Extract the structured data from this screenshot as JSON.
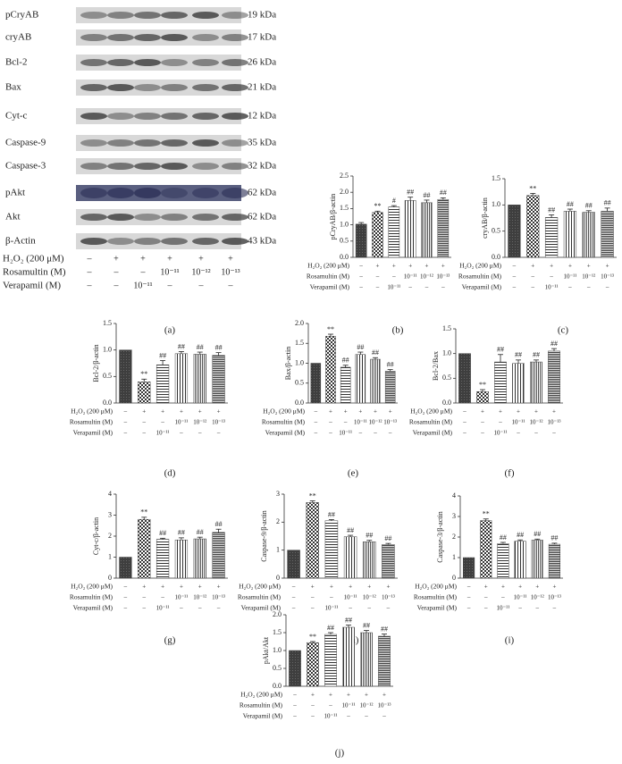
{
  "blot": {
    "label": "(a)",
    "rows": [
      {
        "protein": "pCryAB",
        "size": "19 kDa"
      },
      {
        "protein": "cryAB",
        "size": "17 kDa"
      },
      {
        "protein": "Bcl-2",
        "size": "26 kDa"
      },
      {
        "protein": "Bax",
        "size": "21 kDa"
      },
      {
        "protein": "Cyt-c",
        "size": "12 kDa"
      },
      {
        "protein": "Caspase-9",
        "size": "35 kDa"
      },
      {
        "protein": "Caspase-3",
        "size": "32 kDa"
      },
      {
        "protein": "pAkt",
        "size": "62 kDa"
      },
      {
        "protein": "Akt",
        "size": "62 kDa"
      },
      {
        "protein": "β-Actin",
        "size": "43 kDa"
      }
    ],
    "conditions": [
      {
        "name": "H₂O₂ (200 μM)",
        "values": [
          "–",
          "+",
          "+",
          "+",
          "+",
          "+"
        ]
      },
      {
        "name": "Rosamultin (M)",
        "values": [
          "–",
          "–",
          "–",
          "10⁻¹¹",
          "10⁻¹²",
          "10⁻¹³"
        ]
      },
      {
        "name": "Verapamil (M)",
        "values": [
          "–",
          "–",
          "10⁻¹¹",
          "–",
          "–",
          "–"
        ]
      }
    ]
  },
  "chart_data": [
    {
      "type": "bar",
      "label": "(b)",
      "ylabel": "pCryAB/β-actin",
      "ylim": [
        0,
        2.5
      ],
      "yticks": [
        {
          "value": 0,
          "label": "0.0"
        },
        0.5,
        {
          "value": 1,
          "label": "1.0"
        },
        1.5,
        {
          "value": 2,
          "label": "2.0"
        },
        2.5
      ],
      "values": [
        1.02,
        1.38,
        1.55,
        1.75,
        1.68,
        1.78
      ],
      "errors": [
        0.05,
        0.04,
        0.04,
        0.1,
        0.08,
        0.05
      ],
      "marks": [
        null,
        "**",
        "#",
        "##",
        "##",
        "##"
      ],
      "conditions": [
        {
          "name": "H₂O₂ (200 μM)",
          "values": [
            "–",
            "+",
            "+",
            "+",
            "+",
            "+"
          ]
        },
        {
          "name": "Rosamultin (M)",
          "values": [
            "–",
            "–",
            "–",
            "10⁻¹¹",
            "10⁻¹²",
            "10⁻¹³"
          ]
        },
        {
          "name": "Verapamil (M)",
          "values": [
            "–",
            "–",
            "10⁻¹¹",
            "–",
            "–",
            "–"
          ]
        }
      ]
    },
    {
      "type": "bar",
      "label": "(c)",
      "ylabel": "cryAB/β-actin",
      "ylim": [
        0,
        1.5
      ],
      "yticks": [
        {
          "value": 0,
          "label": "0.0"
        },
        0.5,
        {
          "value": 1,
          "label": "1.0"
        },
        1.5
      ],
      "values": [
        1.0,
        1.18,
        0.76,
        0.88,
        0.86,
        0.88
      ],
      "errors": [
        0,
        0.04,
        0.05,
        0.04,
        0.03,
        0.06
      ],
      "marks": [
        null,
        "**",
        "##",
        "##",
        "##",
        "##"
      ],
      "conditions": [
        {
          "name": "H₂O₂ (200 μM)",
          "values": [
            "–",
            "+",
            "+",
            "+",
            "+",
            "+"
          ]
        },
        {
          "name": "Rosamultin (M)",
          "values": [
            "–",
            "–",
            "–",
            "10⁻¹¹",
            "10⁻¹²",
            "10⁻¹³"
          ]
        },
        {
          "name": "Verapamil (M)",
          "values": [
            "–",
            "–",
            "10⁻¹¹",
            "–",
            "–",
            "–"
          ]
        }
      ]
    },
    {
      "type": "bar",
      "label": "(d)",
      "ylabel": "Bcl-2/β-actin",
      "ylim": [
        0,
        1.5
      ],
      "yticks": [
        {
          "value": 0,
          "label": "0.0"
        },
        0.5,
        {
          "value": 1,
          "label": "1.0"
        },
        1.5
      ],
      "values": [
        1.0,
        0.4,
        0.72,
        0.93,
        0.92,
        0.9
      ],
      "errors": [
        0,
        0.05,
        0.08,
        0.04,
        0.04,
        0.05
      ],
      "marks": [
        null,
        "**",
        "##",
        "##",
        "##",
        "##"
      ],
      "conditions": [
        {
          "name": "H₂O₂ (200 μM)",
          "values": [
            "–",
            "+",
            "+",
            "+",
            "+",
            "+"
          ]
        },
        {
          "name": "Rosamultin (M)",
          "values": [
            "–",
            "–",
            "–",
            "10⁻¹¹",
            "10⁻¹²",
            "10⁻¹³"
          ]
        },
        {
          "name": "Verapamil (M)",
          "values": [
            "–",
            "–",
            "10⁻¹¹",
            "–",
            "–",
            "–"
          ]
        }
      ]
    },
    {
      "type": "bar",
      "label": "(e)",
      "ylabel": "Bax/β-actin",
      "ylim": [
        0,
        2
      ],
      "yticks": [
        {
          "value": 0,
          "label": "0.0"
        },
        0.5,
        {
          "value": 1,
          "label": "1.0"
        },
        1.5,
        {
          "value": 2,
          "label": "2.0"
        }
      ],
      "values": [
        1.0,
        1.68,
        0.9,
        1.22,
        1.1,
        0.8
      ],
      "errors": [
        0,
        0.05,
        0.05,
        0.06,
        0.04,
        0.04
      ],
      "marks": [
        null,
        "**",
        "##",
        "##",
        "##",
        "##"
      ],
      "conditions": [
        {
          "name": "H₂O₂ (200 μM)",
          "values": [
            "–",
            "+",
            "+",
            "+",
            "+",
            "+"
          ]
        },
        {
          "name": "Rosamultin (M)",
          "values": [
            "–",
            "–",
            "–",
            "10⁻¹¹",
            "10⁻¹²",
            "10⁻¹³"
          ]
        },
        {
          "name": "Verapamil (M)",
          "values": [
            "–",
            "–",
            "10⁻¹¹",
            "–",
            "–",
            "–"
          ]
        }
      ]
    },
    {
      "type": "bar",
      "label": "(f)",
      "ylabel": "Bcl-2/Bax",
      "ylim": [
        0,
        1.5
      ],
      "yticks": [
        {
          "value": 0,
          "label": "0.0"
        },
        0.5,
        {
          "value": 1,
          "label": "1.0"
        },
        1.5
      ],
      "values": [
        1.0,
        0.23,
        0.83,
        0.8,
        0.83,
        1.05
      ],
      "errors": [
        0,
        0.04,
        0.15,
        0.07,
        0.04,
        0.05
      ],
      "marks": [
        null,
        "**",
        "##",
        "##",
        "##",
        "##"
      ],
      "conditions": [
        {
          "name": "H₂O₂ (200 μM)",
          "values": [
            "–",
            "+",
            "+",
            "+",
            "+",
            "+"
          ]
        },
        {
          "name": "Rosamultin (M)",
          "values": [
            "–",
            "–",
            "–",
            "10⁻¹¹",
            "10⁻¹²",
            "10⁻¹³"
          ]
        },
        {
          "name": "Verapamil (M)",
          "values": [
            "–",
            "–",
            "10⁻¹¹",
            "–",
            "–",
            "–"
          ]
        }
      ]
    },
    {
      "type": "bar",
      "label": "(g)",
      "ylabel": "Cyt-c/β-actin",
      "ylim": [
        0,
        4
      ],
      "yticks": [
        0,
        1,
        2,
        3,
        4
      ],
      "values": [
        1.0,
        2.8,
        1.85,
        1.82,
        1.87,
        2.18
      ],
      "errors": [
        0,
        0.1,
        0.05,
        0.1,
        0.08,
        0.15
      ],
      "marks": [
        null,
        "**",
        "##",
        "##",
        "##",
        "##"
      ],
      "conditions": [
        {
          "name": "H₂O₂ (200 μM)",
          "values": [
            "–",
            "+",
            "+",
            "+",
            "+",
            "+"
          ]
        },
        {
          "name": "Rosamultin (M)",
          "values": [
            "–",
            "–",
            "–",
            "10⁻¹¹",
            "10⁻¹²",
            "10⁻¹³"
          ]
        },
        {
          "name": "Verapamil (M)",
          "values": [
            "–",
            "–",
            "10⁻¹¹",
            "–",
            "–",
            "–"
          ]
        }
      ]
    },
    {
      "type": "bar",
      "label": "(h)",
      "ylabel": "Caspase-9/β-actin",
      "ylim": [
        0,
        3
      ],
      "yticks": [
        0,
        1,
        2,
        3
      ],
      "values": [
        1.0,
        2.7,
        2.05,
        1.48,
        1.3,
        1.2
      ],
      "errors": [
        0,
        0.06,
        0.04,
        0.05,
        0.05,
        0.04
      ],
      "marks": [
        null,
        "**",
        "##",
        "##",
        "##",
        "##"
      ],
      "conditions": [
        {
          "name": "H₂O₂ (200 μM)",
          "values": [
            "–",
            "+",
            "+",
            "+",
            "+",
            "+"
          ]
        },
        {
          "name": "Rosamultin (M)",
          "values": [
            "–",
            "–",
            "–",
            "10⁻¹¹",
            "10⁻¹²",
            "10⁻¹³"
          ]
        },
        {
          "name": "Verapamil (M)",
          "values": [
            "–",
            "–",
            "10⁻¹¹",
            "–",
            "–",
            "–"
          ]
        }
      ]
    },
    {
      "type": "bar",
      "label": "(i)",
      "ylabel": "Caspase-3/β-actin",
      "ylim": [
        0,
        4
      ],
      "yticks": [
        0,
        1,
        2,
        3,
        4
      ],
      "values": [
        1.0,
        2.8,
        1.68,
        1.8,
        1.85,
        1.65
      ],
      "errors": [
        0,
        0.08,
        0.06,
        0.06,
        0.05,
        0.05
      ],
      "marks": [
        null,
        "**",
        "##",
        "##",
        "##",
        "##"
      ],
      "conditions": [
        {
          "name": "H₂O₂ (200 μM)",
          "values": [
            "–",
            "+",
            "+",
            "+",
            "+",
            "+"
          ]
        },
        {
          "name": "Rosamultin (M)",
          "values": [
            "–",
            "–",
            "–",
            "10⁻¹¹",
            "10⁻¹²",
            "10⁻¹³"
          ]
        },
        {
          "name": "Verapamil (M)",
          "values": [
            "–",
            "–",
            "10⁻¹¹",
            "–",
            "–",
            "–"
          ]
        }
      ]
    },
    {
      "type": "bar",
      "label": "(j)",
      "ylabel": "pAkt/Akt",
      "ylim": [
        0,
        2
      ],
      "yticks": [
        {
          "value": 0,
          "label": "0.0"
        },
        0.5,
        {
          "value": 1,
          "label": "1.0"
        },
        1.5,
        {
          "value": 2,
          "label": "2.0"
        }
      ],
      "values": [
        1.0,
        1.22,
        1.45,
        1.65,
        1.5,
        1.4
      ],
      "errors": [
        0,
        0.03,
        0.05,
        0.06,
        0.06,
        0.06
      ],
      "marks": [
        null,
        "**",
        "##",
        "##",
        "##",
        "##"
      ],
      "conditions": [
        {
          "name": "H₂O₂ (200 μM)",
          "values": [
            "–",
            "+",
            "+",
            "+",
            "+",
            "+"
          ]
        },
        {
          "name": "Rosamultin (M)",
          "values": [
            "–",
            "–",
            "–",
            "10⁻¹¹",
            "10⁻¹²",
            "10⁻¹³"
          ]
        },
        {
          "name": "Verapamil (M)",
          "values": [
            "–",
            "–",
            "10⁻¹¹",
            "–",
            "–",
            "–"
          ]
        }
      ]
    }
  ]
}
